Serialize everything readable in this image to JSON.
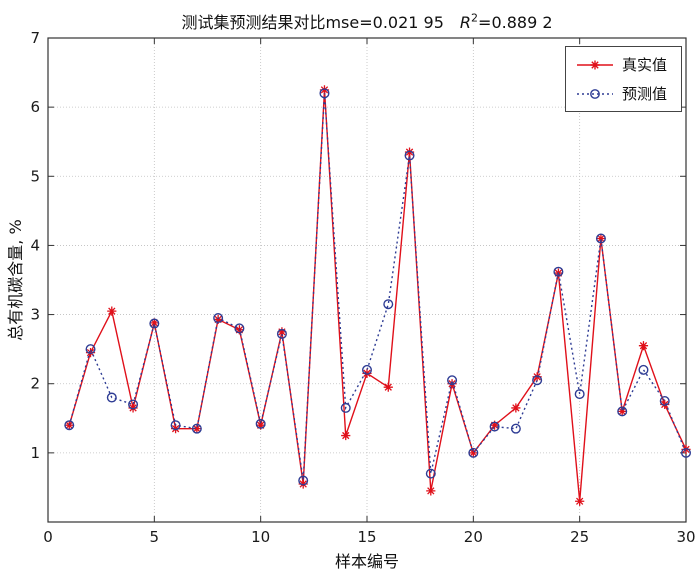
{
  "title": {
    "main": "测试集预测结果对比mse=0.021 95",
    "r_symbol": "R",
    "r_exponent": "2",
    "r_value": "=0.889 2"
  },
  "axes": {
    "xlabel": "样本编号",
    "ylabel": "总有机碳含量, %"
  },
  "legend": {
    "items": [
      {
        "label": "真实值"
      },
      {
        "label": "预测值"
      }
    ]
  },
  "colors": {
    "true_series": "#e0101a",
    "pred_series": "#2e3c94",
    "grid": "#bfbfbf",
    "axis": "#333333"
  },
  "chart_data": {
    "type": "line",
    "title": "测试集预测结果对比mse=0.021 95 R2=0.889 2",
    "xlabel": "样本编号",
    "ylabel": "总有机碳含量, %",
    "xlim": [
      0,
      30
    ],
    "ylim": [
      0,
      7
    ],
    "xticks": [
      0,
      5,
      10,
      15,
      20,
      25,
      30
    ],
    "yticks": [
      1,
      2,
      3,
      4,
      5,
      6,
      7
    ],
    "grid": true,
    "legend_position": "top-right",
    "x": [
      1,
      2,
      3,
      4,
      5,
      6,
      7,
      8,
      9,
      10,
      11,
      12,
      13,
      14,
      15,
      16,
      17,
      18,
      19,
      20,
      21,
      22,
      23,
      24,
      25,
      26,
      27,
      28,
      29,
      30
    ],
    "series": [
      {
        "name": "真实值",
        "marker": "asterisk",
        "line": "solid",
        "values": [
          1.4,
          2.45,
          3.05,
          1.65,
          2.88,
          1.35,
          1.35,
          2.93,
          2.78,
          1.4,
          2.75,
          0.55,
          6.25,
          1.25,
          2.15,
          1.95,
          5.35,
          0.45,
          2.0,
          1.0,
          1.4,
          1.65,
          2.1,
          3.6,
          0.3,
          4.1,
          1.6,
          2.55,
          1.7,
          1.05
        ]
      },
      {
        "name": "预测值",
        "marker": "circle",
        "line": "dotted",
        "values": [
          1.4,
          2.5,
          1.8,
          1.7,
          2.87,
          1.4,
          1.35,
          2.95,
          2.8,
          1.42,
          2.72,
          0.6,
          6.2,
          1.65,
          2.2,
          3.15,
          5.3,
          0.7,
          2.05,
          1.0,
          1.38,
          1.35,
          2.05,
          3.62,
          1.85,
          4.1,
          1.6,
          2.2,
          1.75,
          1.0
        ]
      }
    ]
  }
}
